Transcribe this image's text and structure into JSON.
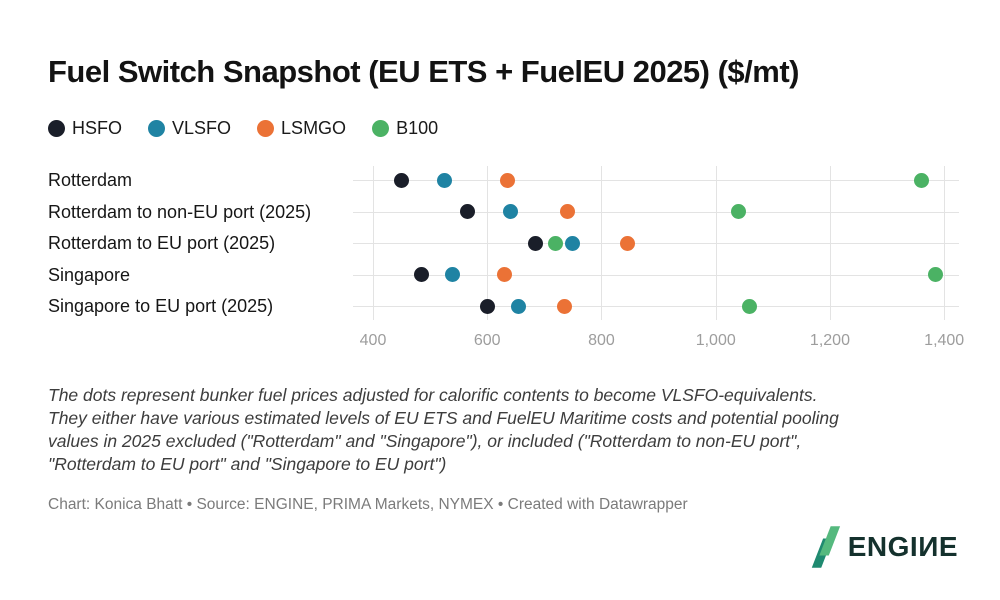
{
  "chart_data": {
    "type": "scatter",
    "title": "Fuel Switch Snapshot (EU ETS + FuelEU 2025) ($/mt)",
    "categories": [
      "Rotterdam",
      "Rotterdam to non-EU port (2025)",
      "Rotterdam to EU port (2025)",
      "Singapore",
      "Singapore to EU port (2025)"
    ],
    "series": [
      {
        "name": "HSFO",
        "color": "#1a1e29",
        "values": [
          450,
          565,
          685,
          485,
          600
        ]
      },
      {
        "name": "VLSFO",
        "color": "#1f83a3",
        "values": [
          525,
          640,
          750,
          540,
          655
        ]
      },
      {
        "name": "LSMGO",
        "color": "#eb7236",
        "values": [
          635,
          740,
          845,
          630,
          735
        ]
      },
      {
        "name": "B100",
        "color": "#4bb264",
        "values": [
          1360,
          1040,
          720,
          1385,
          1060
        ]
      }
    ],
    "xlabel": "",
    "ylabel": "",
    "xticks": [
      400,
      600,
      800,
      1000,
      1200,
      1400
    ],
    "xtick_labels": [
      "400",
      "600",
      "800",
      "1,000",
      "1,200",
      "1,400"
    ],
    "xlim": [
      365,
      1425
    ],
    "grid": "on",
    "legend_position": "top-left"
  },
  "notes": {
    "lines": [
      "The dots represent bunker fuel prices adjusted for calorific contents to become VLSFO-equivalents.",
      "They either have various estimated levels of EU ETS and FuelEU Maritime costs and potential pooling",
      "values in 2025 excluded (\"Rotterdam\" and \"Singapore\"), or included (\"Rotterdam to non-EU port\",",
      "\"Rotterdam to EU port\" and \"Singapore to EU port\")"
    ]
  },
  "credit": "Chart: Konica Bhatt • Source: ENGINE, PRIMA Markets, NYMEX • Created with Datawrapper",
  "logo": {
    "text": "ENGIИE",
    "mark_color_light": "#55b97e",
    "mark_color_dark": "#1f8a70",
    "text_color": "#14312d"
  }
}
